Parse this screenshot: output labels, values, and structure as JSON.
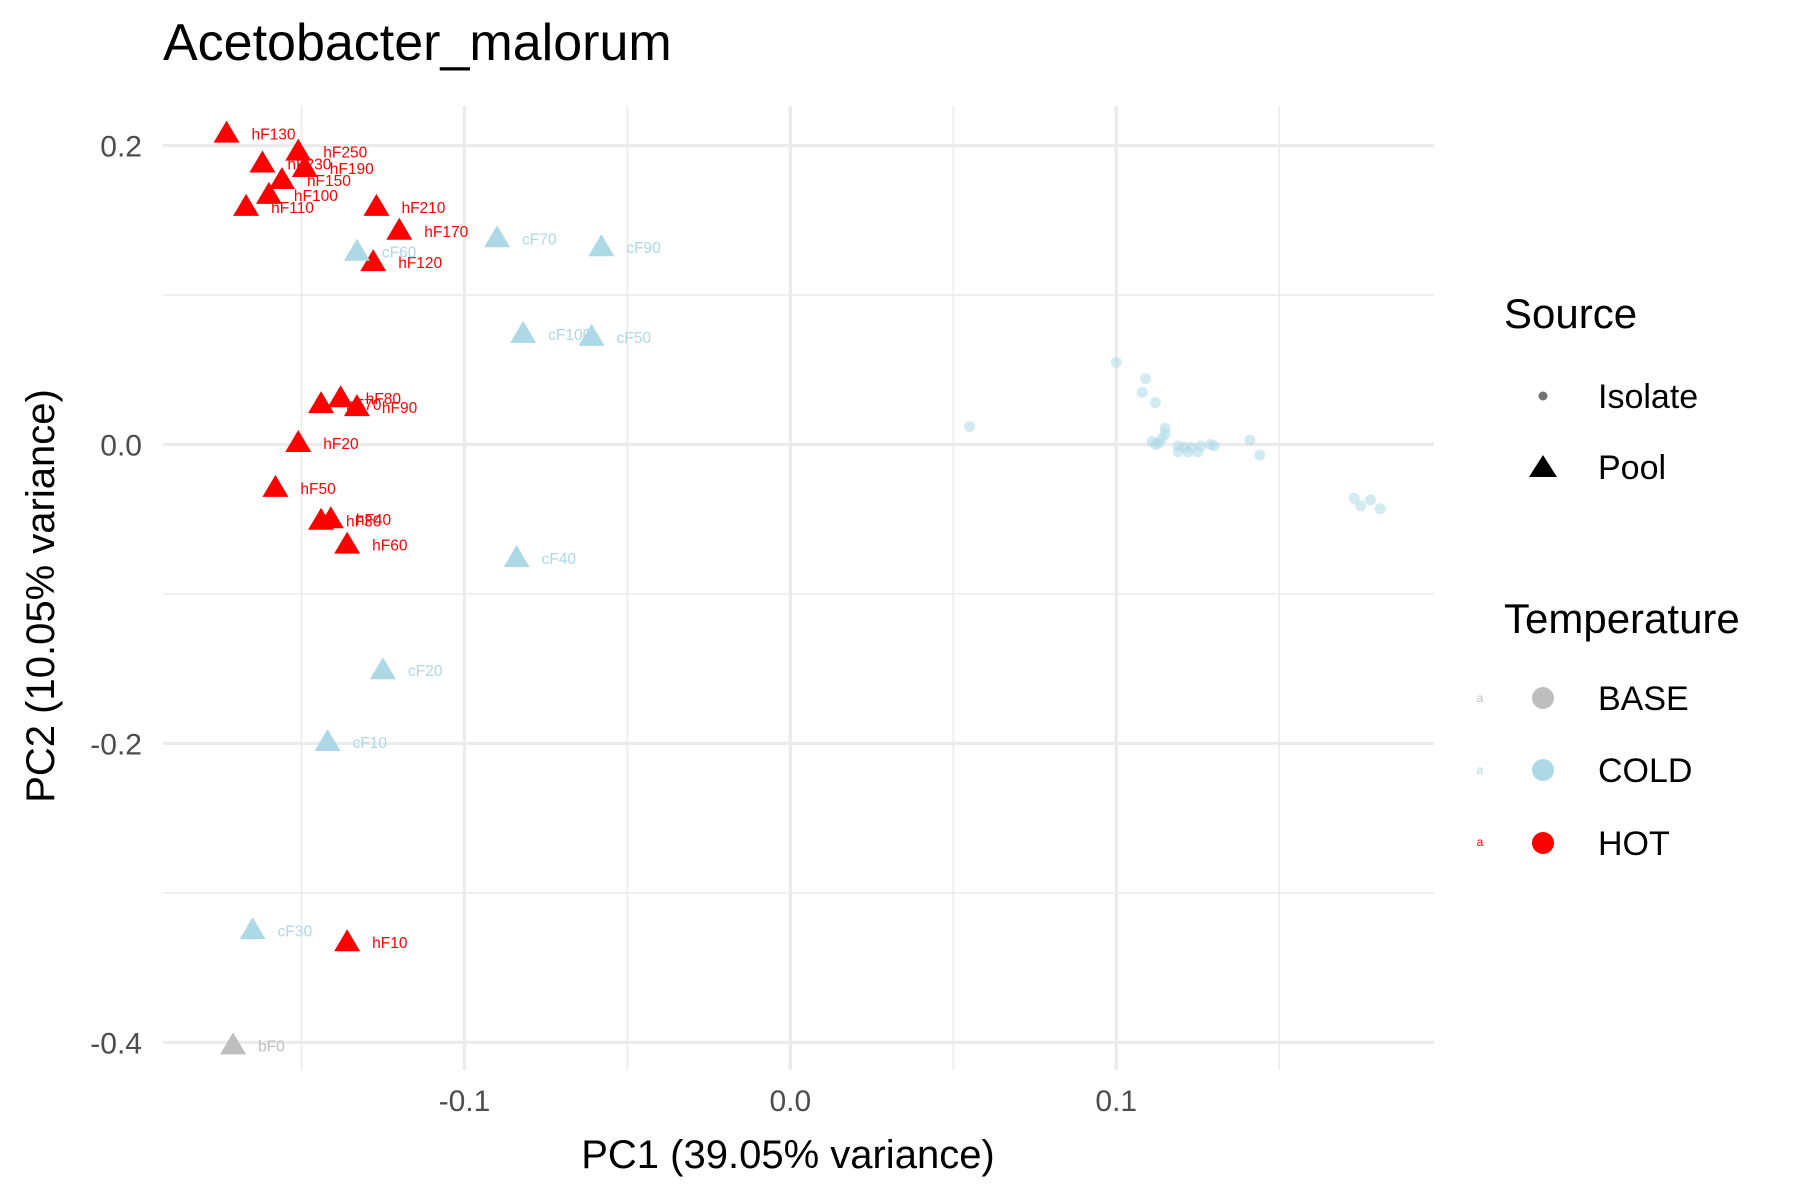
{
  "chart_data": {
    "type": "scatter",
    "title": "Acetobacter_malorum",
    "xlabel": "PC1 (39.05% variance)",
    "ylabel": "PC2 (10.05% variance)",
    "xlim": [
      -0.1925,
      0.1975
    ],
    "ylim": [
      -0.4185,
      0.2265
    ],
    "x_ticks": [
      -0.1,
      0.0,
      0.1
    ],
    "x_tick_labels": [
      "-0.1",
      "0.0",
      "0.1"
    ],
    "y_ticks": [
      -0.4,
      -0.2,
      0.0,
      0.2
    ],
    "y_tick_labels": [
      "-0.4",
      "-0.2",
      "0.0",
      "0.2"
    ],
    "grid": true,
    "legend_position": "right",
    "colors": {
      "BASE": "#bebebe",
      "COLD": "#add8e6",
      "HOT": "#ff0000"
    },
    "legends": {
      "source": {
        "title": "Source",
        "items": [
          "Isolate",
          "Pool"
        ]
      },
      "temperature": {
        "title": "Temperature",
        "items": [
          "BASE",
          "COLD",
          "HOT"
        ],
        "key_glyph": "a"
      }
    },
    "points": [
      {
        "label": "hF130",
        "x": -0.173,
        "y": 0.208,
        "temp": "HOT",
        "source": "Pool"
      },
      {
        "label": "hF250",
        "x": -0.151,
        "y": 0.196,
        "temp": "HOT",
        "source": "Pool"
      },
      {
        "label": "hF230",
        "x": -0.162,
        "y": 0.188,
        "temp": "HOT",
        "source": "Pool"
      },
      {
        "label": "hF190",
        "x": -0.149,
        "y": 0.185,
        "temp": "HOT",
        "source": "Pool"
      },
      {
        "label": "hF150",
        "x": -0.156,
        "y": 0.177,
        "temp": "HOT",
        "source": "Pool"
      },
      {
        "label": "hF100",
        "x": -0.16,
        "y": 0.167,
        "temp": "HOT",
        "source": "Pool"
      },
      {
        "label": "hF110",
        "x": -0.167,
        "y": 0.159,
        "temp": "HOT",
        "source": "Pool"
      },
      {
        "label": "hF210",
        "x": -0.127,
        "y": 0.159,
        "temp": "HOT",
        "source": "Pool"
      },
      {
        "label": "hF170",
        "x": -0.12,
        "y": 0.143,
        "temp": "HOT",
        "source": "Pool"
      },
      {
        "label": "hF120",
        "x": -0.128,
        "y": 0.122,
        "temp": "HOT",
        "source": "Pool"
      },
      {
        "label": "hF80",
        "x": -0.138,
        "y": 0.031,
        "temp": "HOT",
        "source": "Pool"
      },
      {
        "label": "hF70",
        "x": -0.144,
        "y": 0.027,
        "temp": "HOT",
        "source": "Pool"
      },
      {
        "label": "hF90",
        "x": -0.133,
        "y": 0.025,
        "temp": "HOT",
        "source": "Pool"
      },
      {
        "label": "hF20",
        "x": -0.151,
        "y": 0.001,
        "temp": "HOT",
        "source": "Pool"
      },
      {
        "label": "hF50",
        "x": -0.158,
        "y": -0.029,
        "temp": "HOT",
        "source": "Pool"
      },
      {
        "label": "hF40",
        "x": -0.141,
        "y": -0.05,
        "temp": "HOT",
        "source": "Pool"
      },
      {
        "label": "hF30",
        "x": -0.144,
        "y": -0.051,
        "temp": "HOT",
        "source": "Pool"
      },
      {
        "label": "hF60",
        "x": -0.136,
        "y": -0.067,
        "temp": "HOT",
        "source": "Pool"
      },
      {
        "label": "hF10",
        "x": -0.136,
        "y": -0.333,
        "temp": "HOT",
        "source": "Pool"
      },
      {
        "label": "cF60",
        "x": -0.133,
        "y": 0.129,
        "temp": "COLD",
        "source": "Pool"
      },
      {
        "label": "cF70",
        "x": -0.09,
        "y": 0.138,
        "temp": "COLD",
        "source": "Pool"
      },
      {
        "label": "cF90",
        "x": -0.058,
        "y": 0.132,
        "temp": "COLD",
        "source": "Pool"
      },
      {
        "label": "cF100",
        "x": -0.082,
        "y": 0.074,
        "temp": "COLD",
        "source": "Pool"
      },
      {
        "label": "cF50",
        "x": -0.061,
        "y": 0.072,
        "temp": "COLD",
        "source": "Pool"
      },
      {
        "label": "cF40",
        "x": -0.084,
        "y": -0.076,
        "temp": "COLD",
        "source": "Pool"
      },
      {
        "label": "cF20",
        "x": -0.125,
        "y": -0.151,
        "temp": "COLD",
        "source": "Pool"
      },
      {
        "label": "cF10",
        "x": -0.142,
        "y": -0.199,
        "temp": "COLD",
        "source": "Pool"
      },
      {
        "label": "cF30",
        "x": -0.165,
        "y": -0.325,
        "temp": "COLD",
        "source": "Pool"
      },
      {
        "label": "bF0",
        "x": -0.171,
        "y": -0.402,
        "temp": "BASE",
        "source": "Pool"
      },
      {
        "x": 0.055,
        "y": 0.012,
        "temp": "COLD",
        "source": "Isolate"
      },
      {
        "x": 0.1,
        "y": 0.055,
        "temp": "COLD",
        "source": "Isolate"
      },
      {
        "x": 0.109,
        "y": 0.044,
        "temp": "COLD",
        "source": "Isolate"
      },
      {
        "x": 0.108,
        "y": 0.035,
        "temp": "COLD",
        "source": "Isolate"
      },
      {
        "x": 0.112,
        "y": 0.028,
        "temp": "COLD",
        "source": "Isolate"
      },
      {
        "x": 0.115,
        "y": 0.011,
        "temp": "COLD",
        "source": "Isolate"
      },
      {
        "x": 0.115,
        "y": 0.007,
        "temp": "COLD",
        "source": "Isolate"
      },
      {
        "x": 0.114,
        "y": 0.004,
        "temp": "COLD",
        "source": "Isolate"
      },
      {
        "x": 0.111,
        "y": 0.002,
        "temp": "COLD",
        "source": "Isolate"
      },
      {
        "x": 0.113,
        "y": 0.001,
        "temp": "COLD",
        "source": "Isolate"
      },
      {
        "x": 0.112,
        "y": 0.0,
        "temp": "COLD",
        "source": "Isolate"
      },
      {
        "x": 0.119,
        "y": -0.001,
        "temp": "COLD",
        "source": "Isolate"
      },
      {
        "x": 0.121,
        "y": -0.002,
        "temp": "COLD",
        "source": "Isolate"
      },
      {
        "x": 0.123,
        "y": -0.002,
        "temp": "COLD",
        "source": "Isolate"
      },
      {
        "x": 0.126,
        "y": -0.001,
        "temp": "COLD",
        "source": "Isolate"
      },
      {
        "x": 0.129,
        "y": 0.0,
        "temp": "COLD",
        "source": "Isolate"
      },
      {
        "x": 0.13,
        "y": -0.001,
        "temp": "COLD",
        "source": "Isolate"
      },
      {
        "x": 0.119,
        "y": -0.005,
        "temp": "COLD",
        "source": "Isolate"
      },
      {
        "x": 0.122,
        "y": -0.005,
        "temp": "COLD",
        "source": "Isolate"
      },
      {
        "x": 0.125,
        "y": -0.005,
        "temp": "COLD",
        "source": "Isolate"
      },
      {
        "x": 0.141,
        "y": 0.003,
        "temp": "COLD",
        "source": "Isolate"
      },
      {
        "x": 0.144,
        "y": -0.007,
        "temp": "COLD",
        "source": "Isolate"
      },
      {
        "x": 0.173,
        "y": -0.036,
        "temp": "COLD",
        "source": "Isolate"
      },
      {
        "x": 0.175,
        "y": -0.041,
        "temp": "COLD",
        "source": "Isolate"
      },
      {
        "x": 0.178,
        "y": -0.037,
        "temp": "COLD",
        "source": "Isolate"
      },
      {
        "x": 0.181,
        "y": -0.043,
        "temp": "COLD",
        "source": "Isolate"
      }
    ]
  }
}
